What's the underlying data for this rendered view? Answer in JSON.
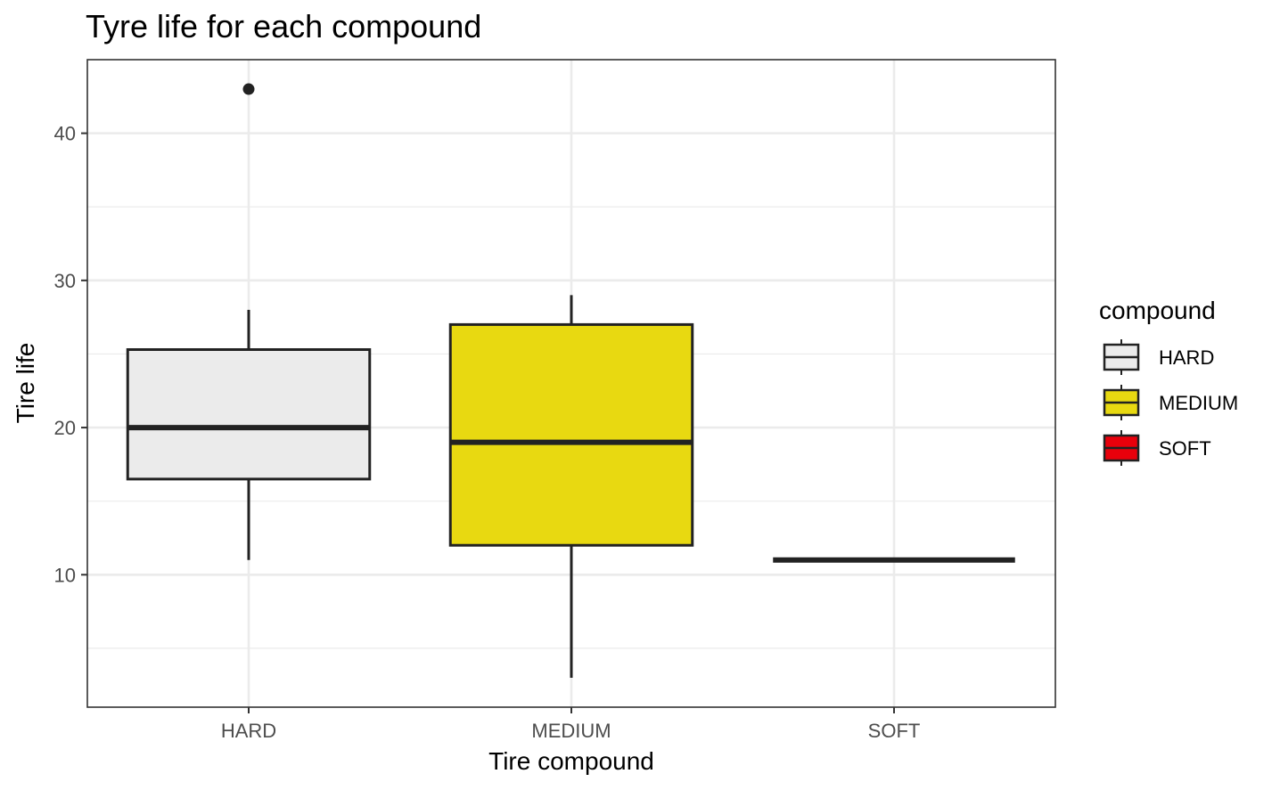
{
  "chart_data": {
    "type": "box",
    "title": "Tyre life for each compound",
    "xlabel": "Tire compound",
    "ylabel": "Tire life",
    "categories": [
      "HARD",
      "MEDIUM",
      "SOFT"
    ],
    "boxes": [
      {
        "category": "HARD",
        "min": 11,
        "q1": 16.5,
        "median": 20,
        "q3": 25.3,
        "max": 28,
        "outliers": [
          43
        ]
      },
      {
        "category": "MEDIUM",
        "min": 3,
        "q1": 12,
        "median": 19,
        "q3": 27,
        "max": 29,
        "outliers": []
      },
      {
        "category": "SOFT",
        "min": 11,
        "q1": 11,
        "median": 11,
        "q3": 11,
        "max": 11,
        "outliers": []
      }
    ],
    "ylim": [
      1,
      45
    ],
    "yticks": [
      10,
      20,
      30,
      40
    ],
    "grid": true,
    "legend": {
      "title": "compound",
      "position": "right",
      "items": [
        {
          "label": "HARD",
          "color": "#ebebeb"
        },
        {
          "label": "MEDIUM",
          "color": "#e8d911"
        },
        {
          "label": "SOFT",
          "color": "#e8000b"
        }
      ]
    },
    "colors": {
      "HARD": "#ebebeb",
      "MEDIUM": "#e8d911",
      "SOFT": "#e8000b"
    }
  }
}
